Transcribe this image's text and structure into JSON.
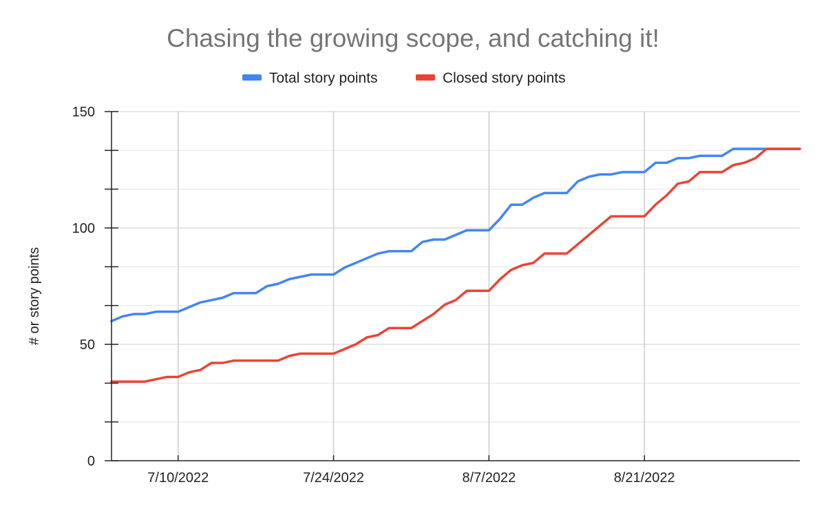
{
  "chart_data": {
    "type": "line",
    "title": "Chasing the growing scope, and catching it!",
    "xlabel": "",
    "ylabel": "# or story points",
    "ylim": [
      0,
      150
    ],
    "yticks": [
      "0",
      "50",
      "100",
      "150"
    ],
    "xlim": [
      "2022-07-04",
      "2022-09-04"
    ],
    "xticks": [
      {
        "date": "2022-07-10",
        "label": "7/10/2022"
      },
      {
        "date": "2022-07-24",
        "label": "7/24/2022"
      },
      {
        "date": "2022-08-07",
        "label": "8/7/2022"
      },
      {
        "date": "2022-08-21",
        "label": "8/21/2022"
      }
    ],
    "legend_position": "top",
    "grid": true,
    "x": [
      "2022-07-04",
      "2022-07-05",
      "2022-07-06",
      "2022-07-07",
      "2022-07-08",
      "2022-07-09",
      "2022-07-10",
      "2022-07-11",
      "2022-07-12",
      "2022-07-13",
      "2022-07-14",
      "2022-07-15",
      "2022-07-16",
      "2022-07-17",
      "2022-07-18",
      "2022-07-19",
      "2022-07-20",
      "2022-07-21",
      "2022-07-22",
      "2022-07-23",
      "2022-07-24",
      "2022-07-25",
      "2022-07-26",
      "2022-07-27",
      "2022-07-28",
      "2022-07-29",
      "2022-07-30",
      "2022-07-31",
      "2022-08-01",
      "2022-08-02",
      "2022-08-03",
      "2022-08-04",
      "2022-08-05",
      "2022-08-06",
      "2022-08-07",
      "2022-08-08",
      "2022-08-09",
      "2022-08-10",
      "2022-08-11",
      "2022-08-12",
      "2022-08-13",
      "2022-08-14",
      "2022-08-15",
      "2022-08-16",
      "2022-08-17",
      "2022-08-18",
      "2022-08-19",
      "2022-08-20",
      "2022-08-21",
      "2022-08-22",
      "2022-08-23",
      "2022-08-24",
      "2022-08-25",
      "2022-08-26",
      "2022-08-27",
      "2022-08-28",
      "2022-08-29",
      "2022-08-30",
      "2022-08-31",
      "2022-09-01",
      "2022-09-02",
      "2022-09-03",
      "2022-09-04"
    ],
    "series": [
      {
        "name": "Total story points",
        "color": "#4285F4",
        "values": [
          60,
          62,
          63,
          63,
          64,
          64,
          64,
          66,
          68,
          69,
          70,
          72,
          72,
          72,
          75,
          76,
          78,
          79,
          80,
          80,
          80,
          83,
          85,
          87,
          89,
          90,
          90,
          90,
          94,
          95,
          95,
          97,
          99,
          99,
          99,
          104,
          110,
          110,
          113,
          115,
          115,
          115,
          120,
          122,
          123,
          123,
          124,
          124,
          124,
          128,
          128,
          130,
          130,
          131,
          131,
          131,
          134,
          134,
          134,
          134,
          134,
          134,
          134
        ]
      },
      {
        "name": "Closed story points",
        "color": "#EA4335",
        "values": [
          34,
          34,
          34,
          34,
          35,
          36,
          36,
          38,
          39,
          42,
          42,
          43,
          43,
          43,
          43,
          43,
          45,
          46,
          46,
          46,
          46,
          48,
          50,
          53,
          54,
          57,
          57,
          57,
          60,
          63,
          67,
          69,
          73,
          73,
          73,
          78,
          82,
          84,
          85,
          89,
          89,
          89,
          93,
          97,
          101,
          105,
          105,
          105,
          105,
          110,
          114,
          119,
          120,
          124,
          124,
          124,
          127,
          128,
          130,
          134,
          134,
          134,
          134
        ]
      }
    ]
  }
}
